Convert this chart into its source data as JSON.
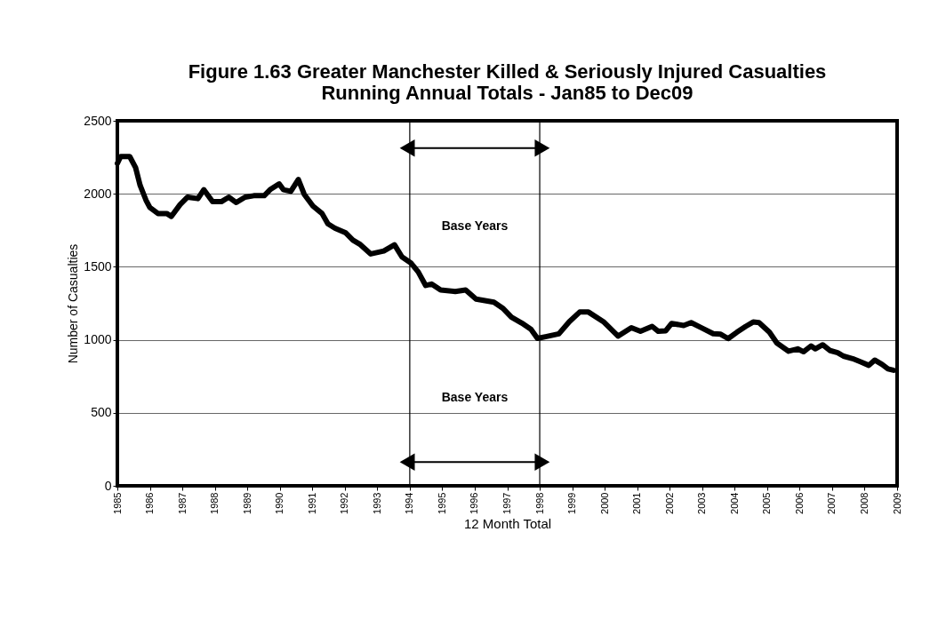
{
  "chart_data": {
    "type": "line",
    "title": "Figure 1.63 Greater Manchester Killed & Seriously Injured Casualties\nRunning Annual Totals - Jan85 to Dec09",
    "xlabel": "12 Month Total",
    "ylabel": "Number of Casualties",
    "x": [
      1985.0,
      1985.1,
      1985.38,
      1985.56,
      1985.7,
      1985.88,
      1986.0,
      1986.25,
      1986.52,
      1986.66,
      1986.93,
      1987.16,
      1987.48,
      1987.66,
      1987.93,
      1988.2,
      1988.43,
      1988.66,
      1988.93,
      1989.2,
      1989.52,
      1989.7,
      1989.98,
      1990.11,
      1990.34,
      1990.57,
      1990.75,
      1991.02,
      1991.3,
      1991.48,
      1991.7,
      1992.02,
      1992.25,
      1992.48,
      1992.8,
      1993.2,
      1993.53,
      1993.76,
      1994.03,
      1994.26,
      1994.49,
      1994.67,
      1994.95,
      1995.4,
      1995.72,
      1996.04,
      1996.59,
      1996.86,
      1997.13,
      1997.45,
      1997.73,
      1997.93,
      1998.18,
      1998.59,
      1998.91,
      1999.23,
      1999.5,
      1999.96,
      2000.41,
      2000.82,
      2001.1,
      2001.46,
      2001.65,
      2001.88,
      2002.06,
      2002.43,
      2002.66,
      2002.98,
      2003.34,
      2003.57,
      2003.8,
      2004.07,
      2004.34,
      2004.57,
      2004.75,
      2005.07,
      2005.3,
      2005.66,
      2005.94,
      2006.12,
      2006.35,
      2006.48,
      2006.71,
      2006.94,
      2007.17,
      2007.35,
      2007.63,
      2007.85,
      2008.13,
      2008.31,
      2008.54,
      2008.72,
      2008.89
    ],
    "series": [
      {
        "color": "#000000",
        "values": [
          2208,
          2255,
          2255,
          2180,
          2058,
          1957,
          1906,
          1865,
          1865,
          1845,
          1926,
          1977,
          1967,
          2028,
          1946,
          1946,
          1977,
          1940,
          1977,
          1987,
          1987,
          2028,
          2068,
          2028,
          2017,
          2098,
          1997,
          1916,
          1865,
          1794,
          1764,
          1734,
          1683,
          1652,
          1588,
          1608,
          1651,
          1568,
          1527,
          1465,
          1372,
          1382,
          1341,
          1331,
          1341,
          1279,
          1258,
          1217,
          1155,
          1114,
          1072,
          1010,
          1021,
          1041,
          1124,
          1190,
          1190,
          1124,
          1025,
          1083,
          1058,
          1092,
          1058,
          1062,
          1112,
          1098,
          1118,
          1082,
          1042,
          1038,
          1008,
          1052,
          1092,
          1122,
          1118,
          1052,
          978,
          922,
          938,
          918,
          958,
          938,
          966,
          926,
          912,
          888,
          871,
          851,
          825,
          861,
          831,
          801,
          791
        ]
      }
    ],
    "xlim": [
      1985,
      2009
    ],
    "xticks": [
      1985,
      1986,
      1987,
      1988,
      1989,
      1990,
      1991,
      1992,
      1993,
      1994,
      1995,
      1996,
      1997,
      1998,
      1999,
      2000,
      2001,
      2002,
      2003,
      2004,
      2005,
      2006,
      2007,
      2008,
      2009
    ],
    "ylim": [
      0,
      2500
    ],
    "yticks": [
      0,
      500,
      1000,
      1500,
      2000,
      2500
    ],
    "grid": "y",
    "legend": false,
    "marker": "none",
    "line_style": "solid",
    "ref_lines": [
      {
        "axis": "x",
        "value": 1994,
        "color": "#000000"
      },
      {
        "axis": "x",
        "value": 1998,
        "color": "#000000"
      }
    ],
    "annotations": [
      "Base Years",
      "Base Years"
    ]
  }
}
